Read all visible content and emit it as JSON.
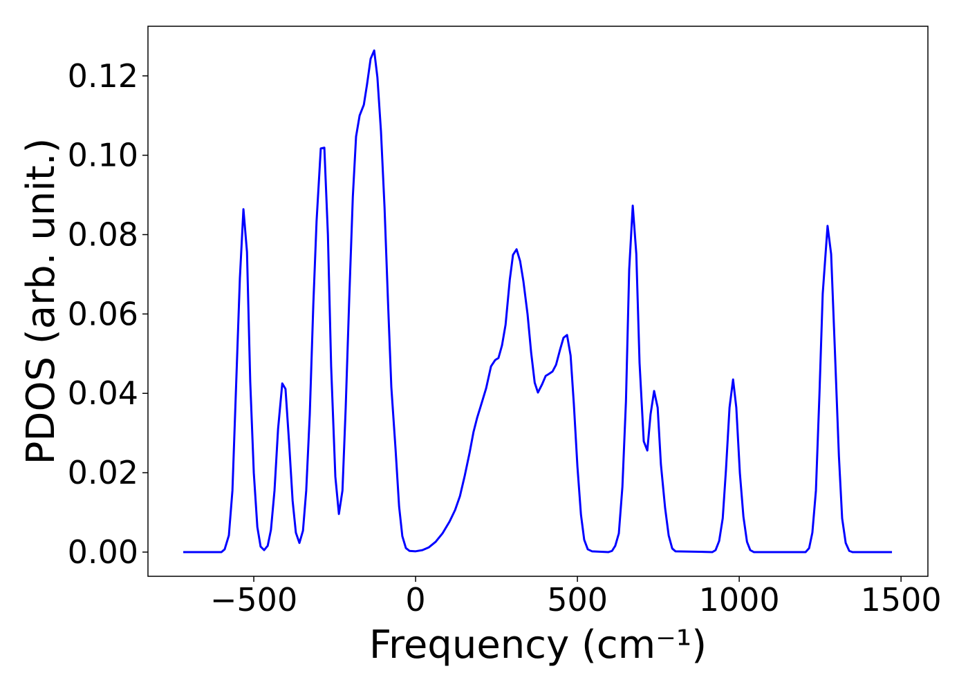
{
  "chart_data": {
    "type": "line",
    "x_label": "Frequency (cm⁻¹)",
    "y_label": "PDOS (arb. unit.)",
    "xlim": [
      -827,
      1583
    ],
    "ylim": [
      -0.0061,
      0.1325
    ],
    "xticks": [
      {
        "value": -500,
        "label": "−500"
      },
      0,
      500,
      1000,
      1500
    ],
    "yticks": [
      {
        "value": 0,
        "label": "0.00"
      },
      {
        "value": 0.02,
        "label": "0.02"
      },
      {
        "value": 0.04,
        "label": "0.04"
      },
      {
        "value": 0.06,
        "label": "0.06"
      },
      {
        "value": 0.08,
        "label": "0.08"
      },
      {
        "value": 0.1,
        "label": "0.10"
      },
      {
        "value": 0.12,
        "label": "0.12"
      }
    ],
    "grid": false,
    "series": [
      {
        "color": "#0000ff",
        "x": [
          -718,
          -600,
          -590,
          -577,
          -566,
          -543,
          -532,
          -521,
          -511,
          -500,
          -489,
          -479,
          -468,
          -457,
          -447,
          -436,
          -425,
          -412,
          -402,
          -391,
          -380,
          -370,
          -359,
          -348,
          -338,
          -327,
          -316,
          -306,
          -293,
          -282,
          -271,
          -261,
          -248,
          -237,
          -226,
          -216,
          -205,
          -194,
          -184,
          -173,
          -160,
          -150,
          -139,
          -128,
          -118,
          -107,
          -96,
          -85,
          -75,
          -62,
          -51,
          -41,
          -30,
          -19,
          0,
          21,
          41,
          62,
          83,
          105,
          122,
          137,
          152,
          167,
          179,
          190,
          205,
          218,
          233,
          246,
          256,
          267,
          278,
          291,
          301,
          312,
          323,
          333,
          346,
          357,
          368,
          378,
          391,
          402,
          412,
          423,
          434,
          447,
          457,
          468,
          479,
          489,
          500,
          511,
          521,
          532,
          545,
          596,
          607,
          617,
          628,
          639,
          650,
          660,
          671,
          682,
          692,
          705,
          716,
          726,
          737,
          748,
          758,
          771,
          782,
          793,
          803,
          917,
          927,
          938,
          949,
          959,
          970,
          981,
          991,
          1002,
          1013,
          1024,
          1034,
          1045,
          1205,
          1216,
          1226,
          1237,
          1248,
          1258,
          1273,
          1284,
          1295,
          1308,
          1318,
          1329,
          1340,
          1350,
          1472
        ],
        "values": [
          0,
          0,
          0.0007,
          0.0042,
          0.0155,
          0.069,
          0.0864,
          0.0756,
          0.043,
          0.02,
          0.0063,
          0.0014,
          0.0005,
          0.0016,
          0.0056,
          0.0155,
          0.031,
          0.0425,
          0.0411,
          0.0277,
          0.0129,
          0.0049,
          0.0023,
          0.0054,
          0.0155,
          0.0347,
          0.0625,
          0.0834,
          0.1017,
          0.1019,
          0.08,
          0.0468,
          0.019,
          0.0096,
          0.0155,
          0.0364,
          0.064,
          0.0895,
          0.1047,
          0.11,
          0.1127,
          0.1179,
          0.1243,
          0.1264,
          0.1196,
          0.106,
          0.0869,
          0.0625,
          0.0416,
          0.026,
          0.0115,
          0.004,
          0.001,
          0.0003,
          0.0002,
          0.0005,
          0.0012,
          0.0026,
          0.0047,
          0.0077,
          0.0106,
          0.0141,
          0.0193,
          0.0251,
          0.0303,
          0.0338,
          0.0378,
          0.0413,
          0.0468,
          0.0484,
          0.0489,
          0.0521,
          0.0573,
          0.0686,
          0.0749,
          0.0763,
          0.0733,
          0.0683,
          0.0599,
          0.0503,
          0.0427,
          0.0402,
          0.0423,
          0.0444,
          0.0449,
          0.0455,
          0.0472,
          0.0512,
          0.054,
          0.0547,
          0.0495,
          0.0373,
          0.0216,
          0.0094,
          0.0031,
          0.0007,
          0.0002,
          0,
          0.0003,
          0.0016,
          0.0047,
          0.0164,
          0.038,
          0.0712,
          0.0873,
          0.0751,
          0.0477,
          0.0279,
          0.0256,
          0.0347,
          0.0406,
          0.0364,
          0.0221,
          0.0111,
          0.0042,
          0.0009,
          0.0002,
          0,
          0.0005,
          0.0028,
          0.0085,
          0.0207,
          0.0364,
          0.0435,
          0.0364,
          0.0199,
          0.0089,
          0.0026,
          0.0005,
          0,
          0,
          0.001,
          0.0049,
          0.0155,
          0.04,
          0.0651,
          0.0822,
          0.0751,
          0.0521,
          0.0242,
          0.0085,
          0.0023,
          0.0003,
          0,
          0
        ]
      }
    ]
  }
}
